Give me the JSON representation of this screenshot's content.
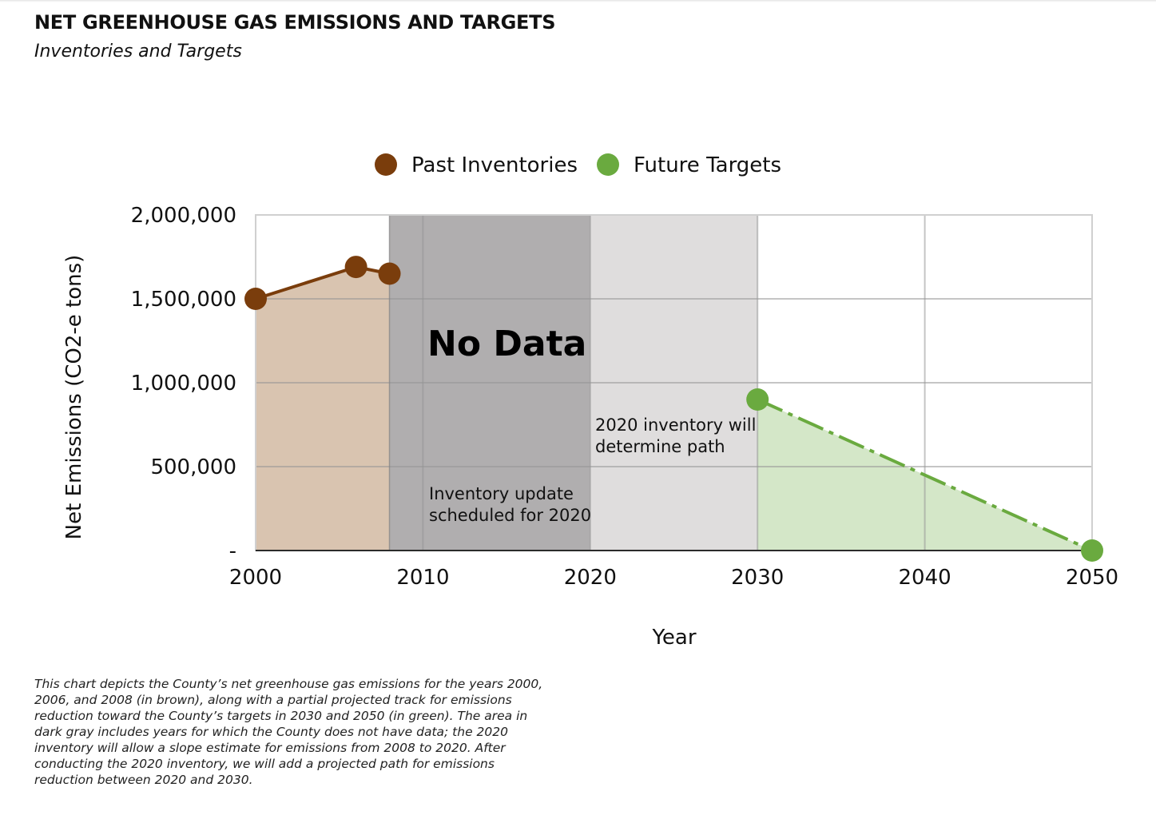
{
  "page": {
    "title": "NET GREENHOUSE GAS EMISSIONS AND TARGETS",
    "subtitle": "Inventories and Targets",
    "caption": "This chart depicts the County’s net greenhouse gas emissions for the years 2000, 2006, and 2008 (in brown), along with a partial projected track for emissions reduction toward the County’s targets in 2030 and 2050 (in green). The area in dark gray includes years for which the County does not have data; the 2020 inventory will allow a slope estimate for emissions from 2008 to 2020. After conducting the 2020 inventory, we will add a projected path for emissions reduction between 2020 and 2030."
  },
  "chart_data": {
    "type": "line",
    "xlabel": "Year",
    "ylabel": "Net Emissions (CO2-e tons)",
    "xlim": [
      2000,
      2050
    ],
    "ylim": [
      0,
      2000000
    ],
    "x_ticks": [
      2000,
      2010,
      2020,
      2030,
      2040,
      2050
    ],
    "y_ticks": [
      0,
      500000,
      1000000,
      1500000,
      2000000
    ],
    "y_tick_labels": [
      "-",
      "500,000",
      "1,000,000",
      "1,500,000",
      "2,000,000"
    ],
    "grid": true,
    "legend_position": "top-center",
    "series": [
      {
        "name": "Past Inventories",
        "color": "#7a3d0c",
        "fill_color": "#d9c4b0",
        "line_style": "solid",
        "points": [
          {
            "x": 2000,
            "y": 1500000
          },
          {
            "x": 2006,
            "y": 1690000
          },
          {
            "x": 2008,
            "y": 1650000
          }
        ]
      },
      {
        "name": "Future Targets",
        "color": "#6aaa3f",
        "fill_color": "#d4e7c8",
        "line_style": "dash-dot",
        "points": [
          {
            "x": 2030,
            "y": 900000
          },
          {
            "x": 2050,
            "y": 0
          }
        ]
      }
    ],
    "regions": [
      {
        "x_start": 2008,
        "x_end": 2020,
        "color": "#b0aeaf",
        "label": "No Data",
        "note": "Inventory update scheduled for 2020"
      },
      {
        "x_start": 2020,
        "x_end": 2030,
        "color": "#dfdddd",
        "note": "2020 inventory will determine path"
      }
    ]
  }
}
